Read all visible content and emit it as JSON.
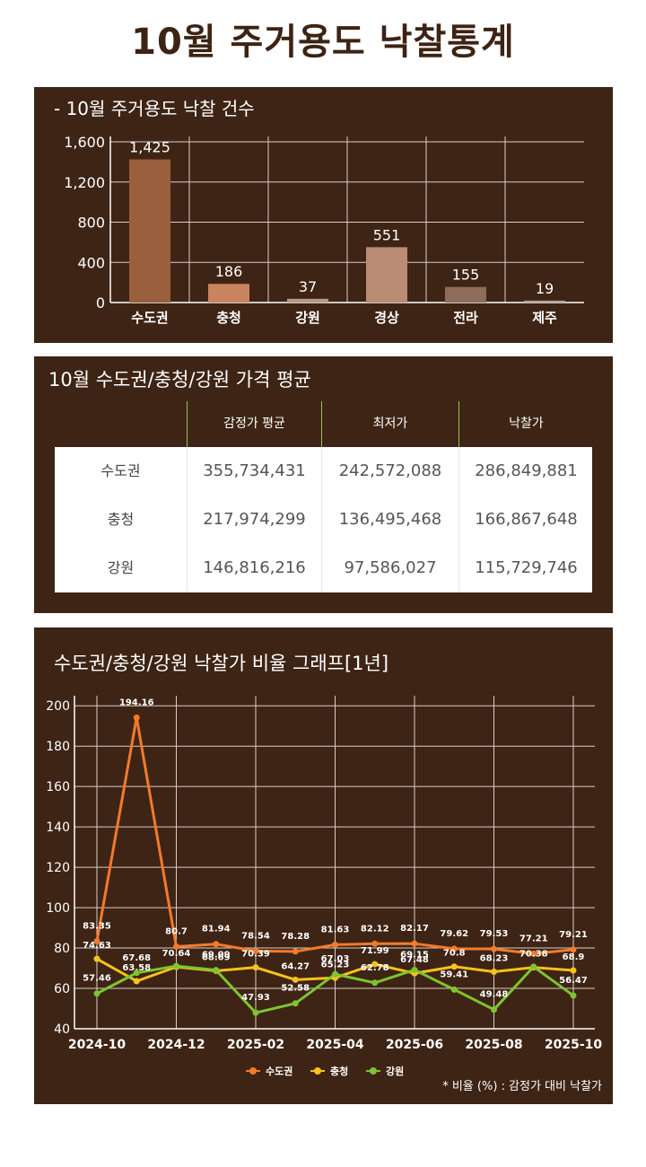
{
  "page": {
    "title": "10월 주거용도 낙찰통계"
  },
  "colors": {
    "panel": "#3e2415",
    "title": "#3d2314"
  },
  "count_panel": {
    "title": "- 10월 주거용도 낙찰 건수"
  },
  "price_panel": {
    "title": "10월 수도권/충청/강원 가격 평균",
    "columns": [
      "감정가 평균",
      "최저가",
      "낙찰가"
    ],
    "rows": [
      {
        "region": "수도권",
        "values": [
          "355,734,431",
          "242,572,088",
          "286,849,881"
        ]
      },
      {
        "region": "충청",
        "values": [
          "217,974,299",
          "136,495,468",
          "166,867,648"
        ]
      },
      {
        "region": "강원",
        "values": [
          "146,816,216",
          "97,586,027",
          "115,729,746"
        ]
      }
    ]
  },
  "ratio_panel": {
    "title": "수도권/충청/강원 낙찰가 비율 그래프[1년]",
    "note": "* 비율 (%) : 감정가 대비 낙찰가"
  },
  "chart_data": [
    {
      "type": "bar",
      "categories": [
        "수도권",
        "충청",
        "강원",
        "경상",
        "전라",
        "제주"
      ],
      "values": [
        1425,
        186,
        37,
        551,
        155,
        19
      ],
      "value_labels": [
        "1,425",
        "186",
        "37",
        "551",
        "155",
        "19"
      ],
      "colors": [
        "#9a5f3c",
        "#c8845e",
        "#b79a86",
        "#b98c73",
        "#8e6c5a",
        "#b7a191"
      ],
      "ylim": [
        0,
        1600
      ],
      "y_ticks": [
        0,
        400,
        800,
        1200,
        1600
      ],
      "y_tick_labels": [
        "0",
        "400",
        "800",
        "1,200",
        "1,600"
      ],
      "grid": true
    },
    {
      "type": "line",
      "x": [
        "2024-10",
        "2024-11",
        "2024-12",
        "2025-01",
        "2025-02",
        "2025-03",
        "2025-04",
        "2025-05",
        "2025-06",
        "2025-07",
        "2025-08",
        "2025-09",
        "2025-10"
      ],
      "x_tick_labels": [
        "2024-10",
        "2024-12",
        "2025-02",
        "2025-04",
        "2025-06",
        "2025-08",
        "2025-10"
      ],
      "ylim": [
        40,
        205
      ],
      "y_ticks": [
        40,
        60,
        80,
        100,
        120,
        140,
        160,
        180,
        200
      ],
      "grid": true,
      "legend_position": "bottom",
      "series": [
        {
          "name": "수도권",
          "color": "#f47a2a",
          "values": [
            83.35,
            194.16,
            80.7,
            81.94,
            78.54,
            78.28,
            81.63,
            82.12,
            82.17,
            79.62,
            79.53,
            77.21,
            79.21
          ],
          "labels": [
            "83.35",
            "194.16",
            "80.7",
            "81.94",
            "78.54",
            "78.28",
            "81.63",
            "82.12",
            "82.17",
            "79.62",
            "79.53",
            "77.21",
            "79.21"
          ]
        },
        {
          "name": "충청",
          "color": "#f7c21b",
          "values": [
            74.63,
            63.58,
            70.64,
            68.69,
            70.39,
            64.27,
            65.23,
            71.99,
            67.48,
            70.8,
            68.23,
            70.38,
            68.9
          ],
          "labels": [
            "74.63",
            "63.58",
            "70.64",
            "68.69",
            "70.39",
            "64.27",
            "65.23",
            "71.99",
            "67.48",
            "70.8",
            "68.23",
            "70.38",
            "68.9"
          ]
        },
        {
          "name": "강원",
          "color": "#7cc530",
          "values": [
            57.46,
            67.68,
            71.1,
            69.09,
            47.93,
            52.58,
            67.03,
            62.78,
            69.15,
            59.41,
            49.48,
            70.73,
            56.47
          ],
          "labels": [
            "57.46",
            "67.68",
            "",
            "69.09",
            "47.93",
            "52.58",
            "67.03",
            "62.78",
            "69.15",
            "59.41",
            "49.48",
            "",
            "56.47"
          ]
        }
      ]
    }
  ]
}
